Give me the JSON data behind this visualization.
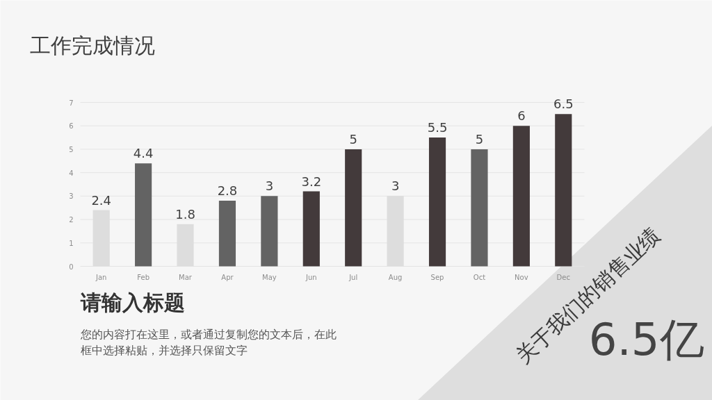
{
  "chart_data": {
    "type": "bar",
    "title": "工作完成情况",
    "categories": [
      "Jan",
      "Feb",
      "Mar",
      "Apr",
      "May",
      "Jun",
      "Jul",
      "Aug",
      "Sep",
      "Oct",
      "Nov",
      "Dec"
    ],
    "values": [
      2.4,
      4.4,
      1.8,
      2.8,
      3,
      3.2,
      5,
      3,
      5.5,
      5,
      6,
      6.5
    ],
    "colors": [
      "#dddddd",
      "#636363",
      "#dddddd",
      "#636363",
      "#636363",
      "#433a3b",
      "#433a3b",
      "#dddddd",
      "#433a3b",
      "#636363",
      "#433a3b",
      "#433a3b"
    ],
    "ylim": [
      0,
      7
    ],
    "yticks": [
      0,
      1,
      2,
      3,
      4,
      5,
      6,
      7
    ],
    "grid": "y",
    "data_labels": true,
    "annotations": [
      "请输入标题",
      "您的内容打在这里，或者通过复制您的文本后，在此框中选择粘贴，并选择只保留文字",
      "关于我们的销售业绩",
      "6.5亿"
    ]
  }
}
